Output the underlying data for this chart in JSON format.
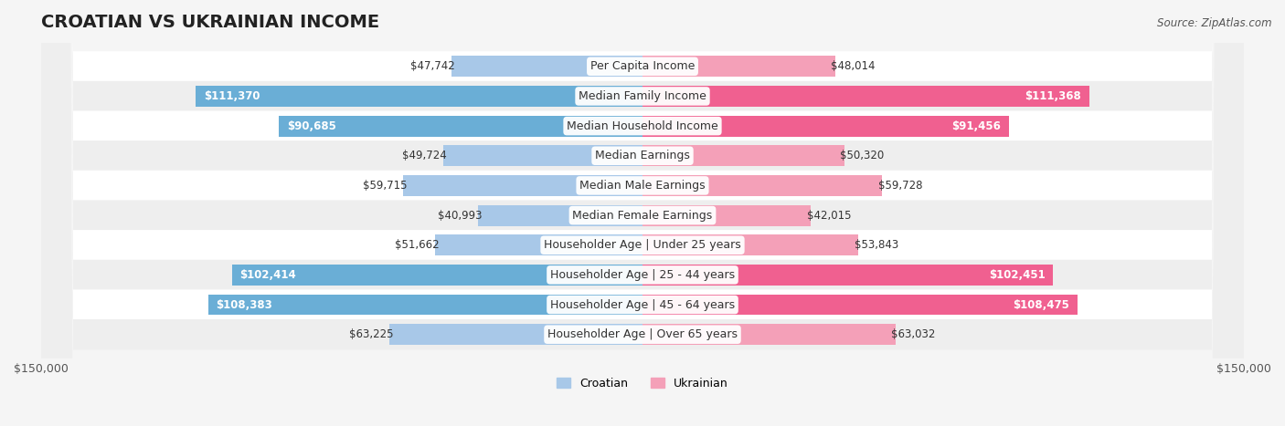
{
  "title": "CROATIAN VS UKRAINIAN INCOME",
  "source": "Source: ZipAtlas.com",
  "categories": [
    "Per Capita Income",
    "Median Family Income",
    "Median Household Income",
    "Median Earnings",
    "Median Male Earnings",
    "Median Female Earnings",
    "Householder Age | Under 25 years",
    "Householder Age | 25 - 44 years",
    "Householder Age | 45 - 64 years",
    "Householder Age | Over 65 years"
  ],
  "croatian_values": [
    47742,
    111370,
    90685,
    49724,
    59715,
    40993,
    51662,
    102414,
    108383,
    63225
  ],
  "ukrainian_values": [
    48014,
    111368,
    91456,
    50320,
    59728,
    42015,
    53843,
    102451,
    108475,
    63032
  ],
  "croatian_color_light": "#a8c8e8",
  "croatian_color_dark": "#6aaed6",
  "ukrainian_color_light": "#f4a0b8",
  "ukrainian_color_dark": "#f06090",
  "max_value": 150000,
  "bar_height": 0.35,
  "background_color": "#f5f5f5",
  "row_colors": [
    "#ffffff",
    "#eeeeee"
  ],
  "title_fontsize": 14,
  "label_fontsize": 9,
  "value_fontsize": 8.5,
  "axis_label_fontsize": 9
}
